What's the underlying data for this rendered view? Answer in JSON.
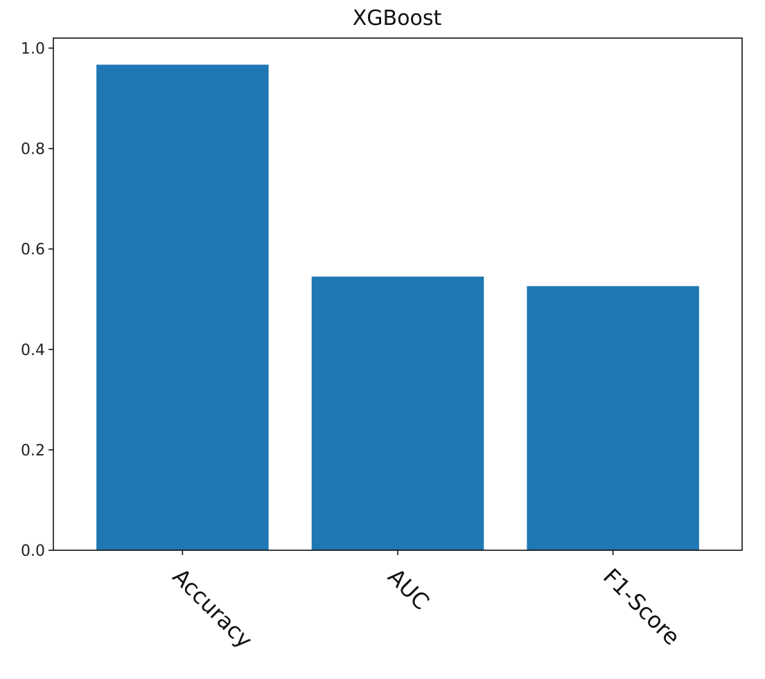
{
  "chart_data": {
    "type": "bar",
    "title": "XGBoost",
    "xlabel": "",
    "ylabel": "",
    "categories": [
      "Accuracy",
      "AUC",
      "F1-Score"
    ],
    "values": [
      0.967,
      0.545,
      0.526
    ],
    "ylim": [
      0,
      1.02
    ],
    "yticks": [
      0.0,
      0.2,
      0.4,
      0.6,
      0.8,
      1.0
    ],
    "ytick_labels": [
      "0.0",
      "0.2",
      "0.4",
      "0.6",
      "0.8",
      "1.0"
    ],
    "xtick_rotation_deg": -45,
    "bar_color": "#1f77b4",
    "grid": false,
    "legend": "none"
  }
}
